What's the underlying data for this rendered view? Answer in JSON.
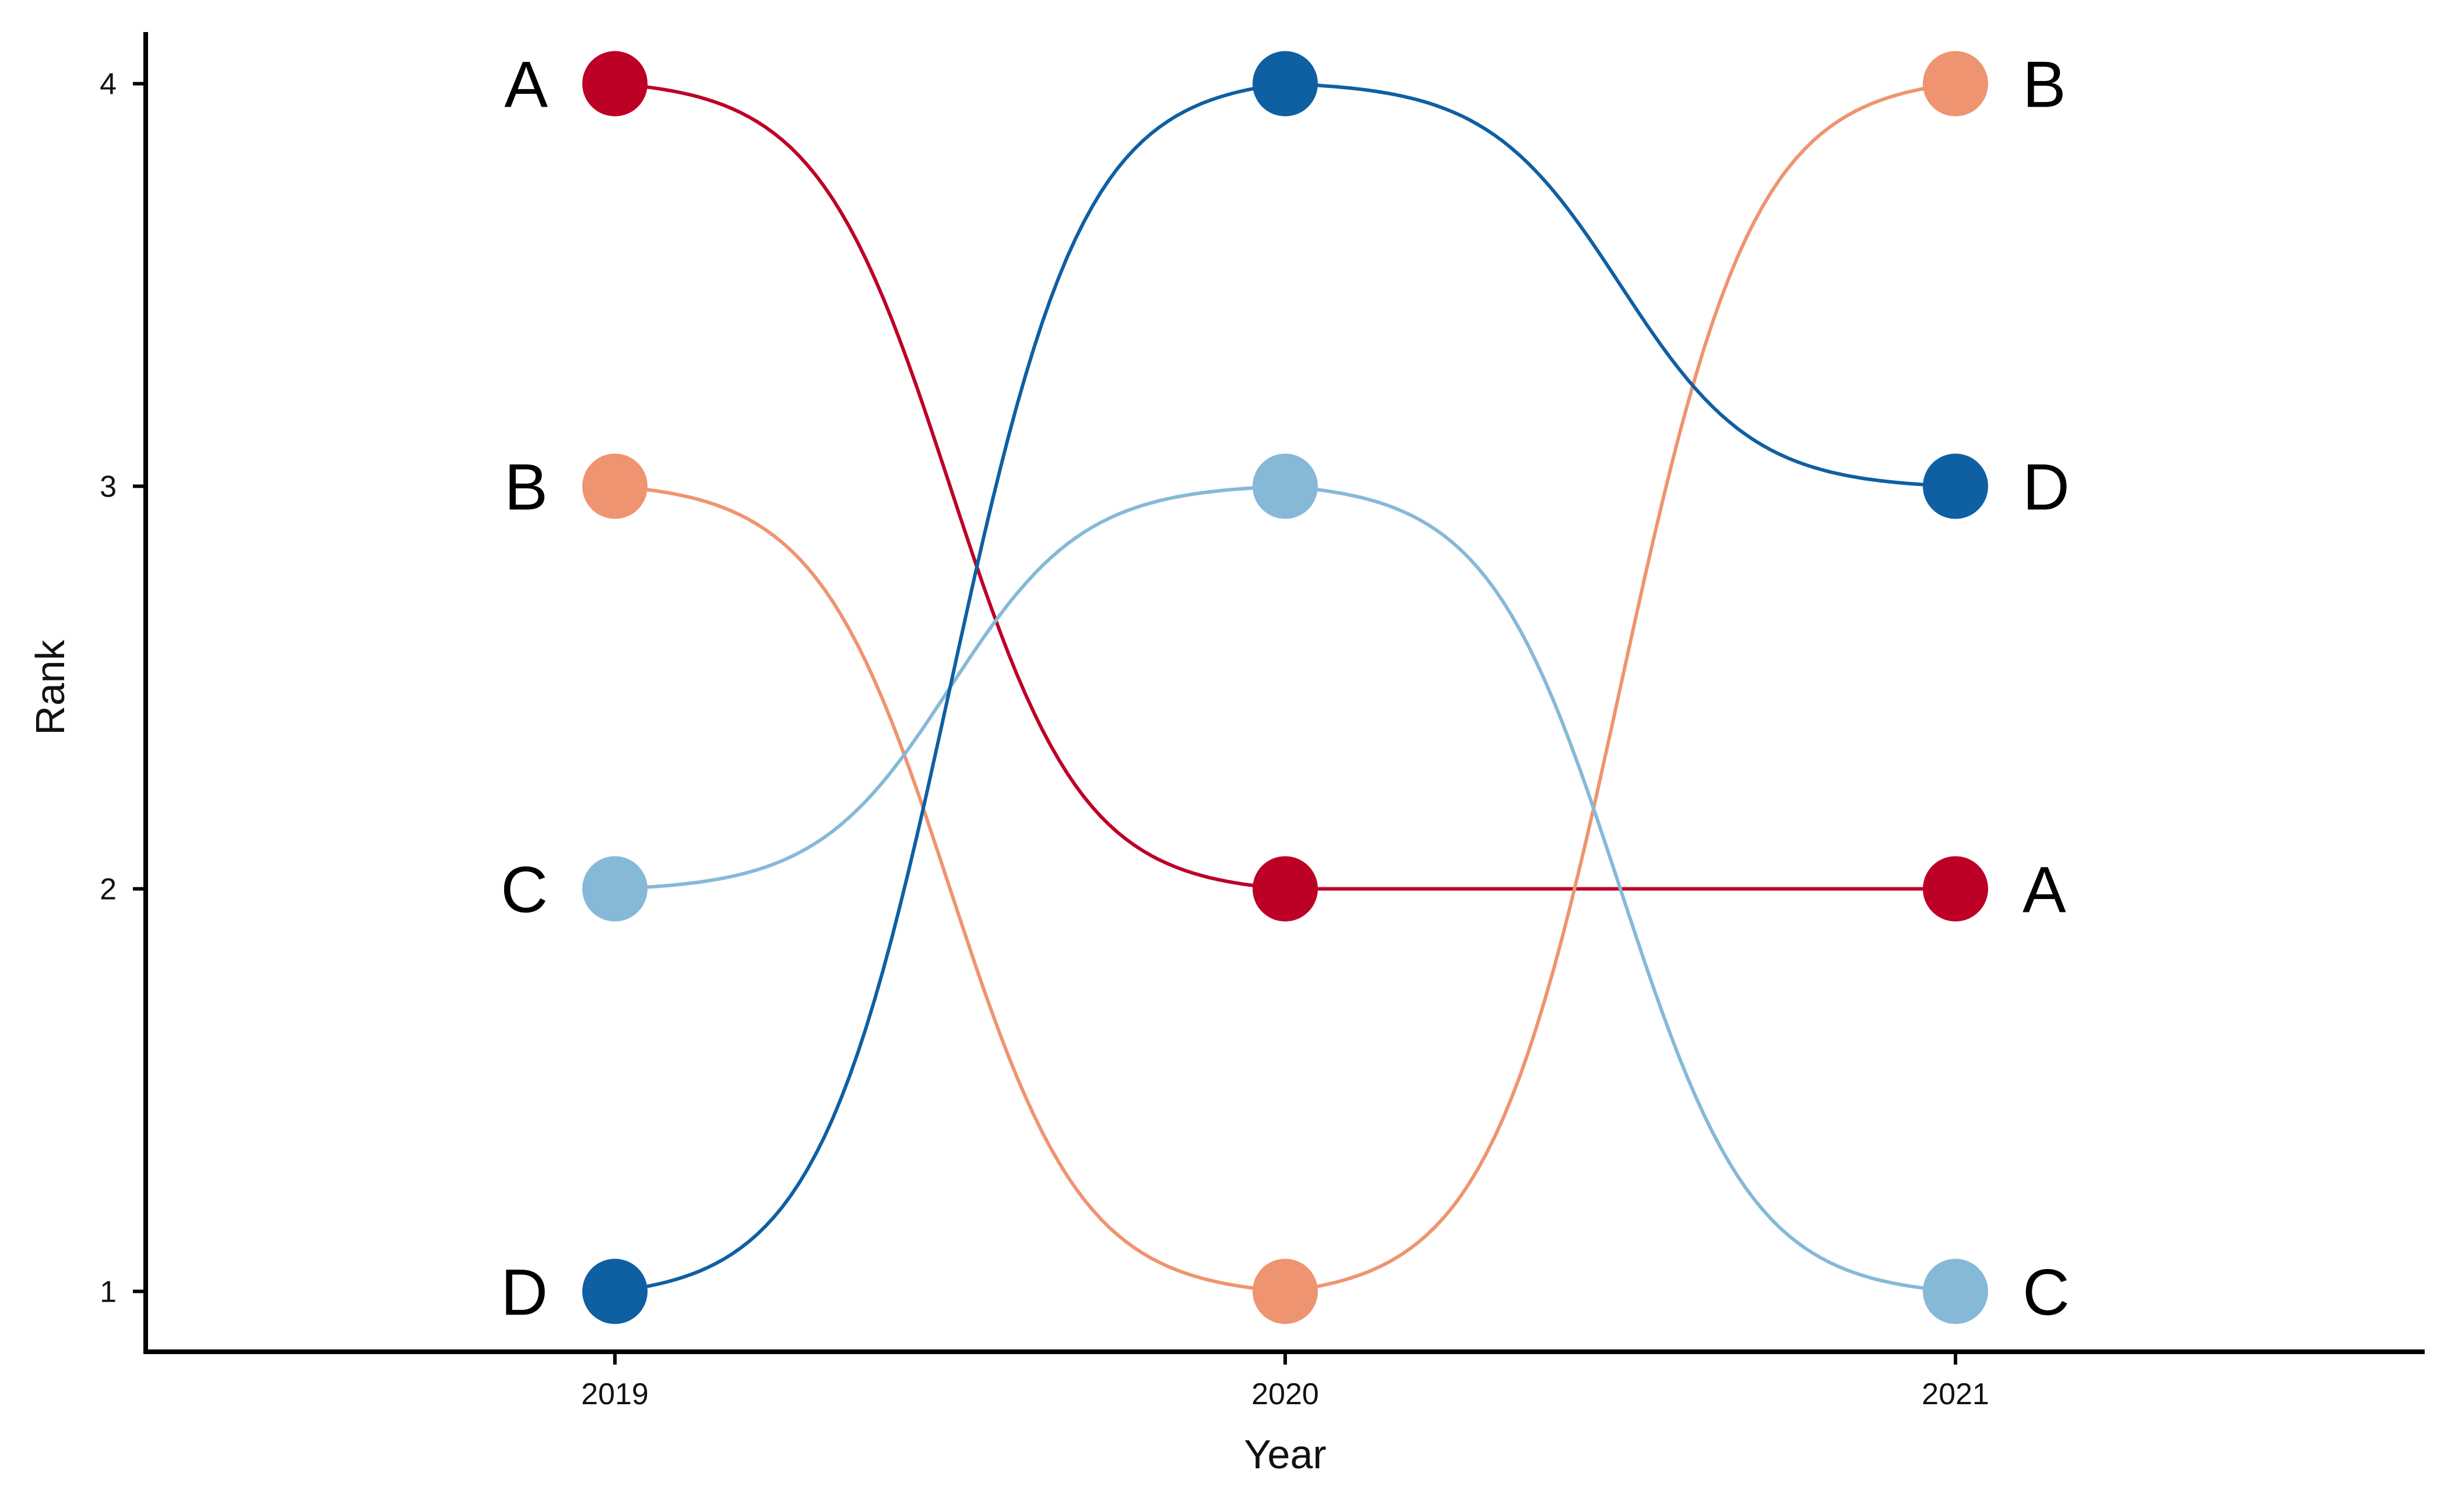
{
  "chart_data": {
    "type": "line",
    "subtype": "bump",
    "title": "",
    "xlabel": "Year",
    "ylabel": "Rank",
    "x": [
      2019,
      2020,
      2021
    ],
    "x_tick_labels": [
      "2019",
      "2020",
      "2021"
    ],
    "y_ticks": [
      1,
      2,
      3,
      4
    ],
    "y_tick_labels": [
      "1",
      "2",
      "3",
      "4"
    ],
    "xlim": [
      2018.3,
      2021.7
    ],
    "ylim": [
      0.85,
      4.15
    ],
    "grid": false,
    "legend": "none",
    "series": [
      {
        "name": "A",
        "color": "#bd0026",
        "values": [
          4,
          2,
          2
        ]
      },
      {
        "name": "B",
        "color": "#ef9470",
        "values": [
          3,
          1,
          4
        ]
      },
      {
        "name": "C",
        "color": "#86b9d8",
        "values": [
          2,
          3,
          1
        ]
      },
      {
        "name": "D",
        "color": "#0f5fa3",
        "values": [
          1,
          4,
          3
        ]
      }
    ]
  }
}
